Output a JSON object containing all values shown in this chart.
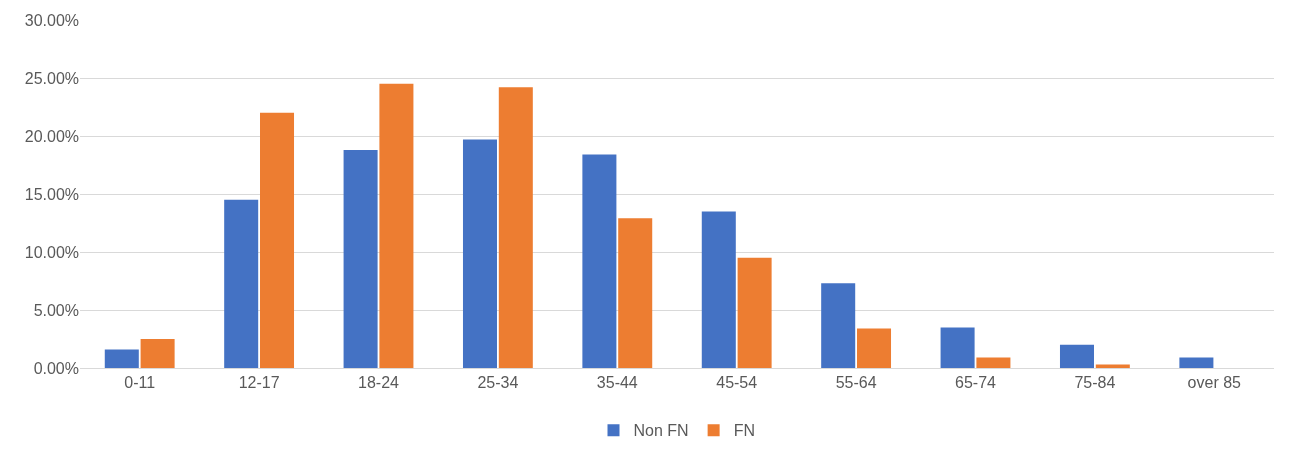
{
  "chart_data": {
    "type": "bar",
    "categories": [
      "0-11",
      "12-17",
      "18-24",
      "25-34",
      "35-44",
      "45-54",
      "55-64",
      "65-74",
      "75-84",
      "over 85"
    ],
    "series": [
      {
        "name": "Non FN",
        "color": "#4472c4",
        "values": [
          1.6,
          14.5,
          18.8,
          19.7,
          18.4,
          13.5,
          7.3,
          3.5,
          2,
          0.9
        ]
      },
      {
        "name": "FN",
        "color": "#ed7d31",
        "values": [
          2.5,
          22,
          24.5,
          24.2,
          12.9,
          9.5,
          3.4,
          0.9,
          0.3,
          0
        ]
      }
    ],
    "ylim": [
      0,
      30
    ],
    "yticks": [
      {
        "value": 0,
        "label": "0.00%"
      },
      {
        "value": 5,
        "label": "5.00%"
      },
      {
        "value": 10,
        "label": "10.00%"
      },
      {
        "value": 15,
        "label": "15.00%"
      },
      {
        "value": 20,
        "label": "20.00%"
      },
      {
        "value": 25,
        "label": "25.00%"
      },
      {
        "value": 30,
        "label": "30.00%"
      }
    ],
    "grid": "y",
    "legend": "bottom"
  }
}
